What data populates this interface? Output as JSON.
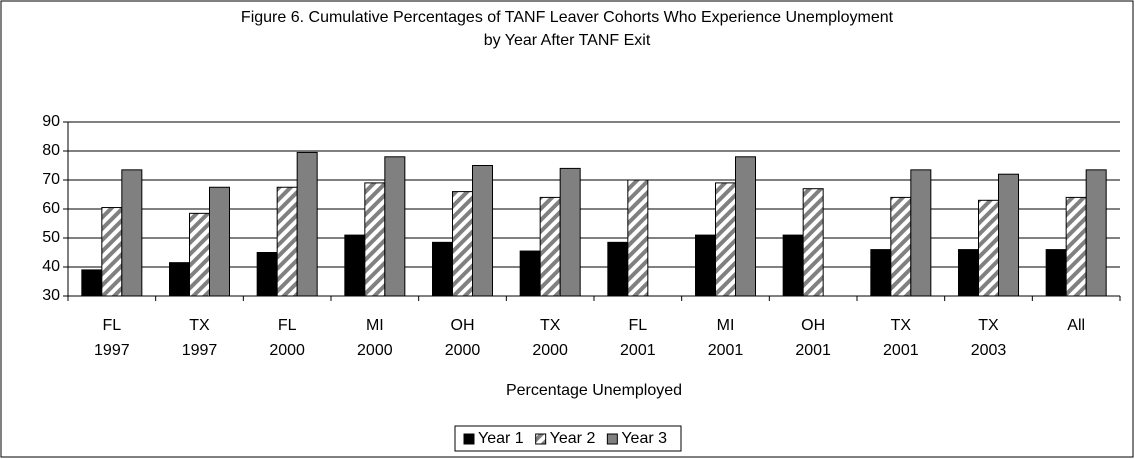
{
  "chart_data": {
    "type": "bar",
    "title": [
      "Figure 6.  Cumulative Percentages of TANF Leaver Cohorts Who Experience Unemployment",
      "by Year After TANF Exit"
    ],
    "x_label": "Percentage Unemployed",
    "categories": [
      [
        "FL",
        "1997"
      ],
      [
        "TX",
        "1997"
      ],
      [
        "FL",
        "2000"
      ],
      [
        "MI",
        "2000"
      ],
      [
        "OH",
        "2000"
      ],
      [
        "TX",
        "2000"
      ],
      [
        "FL",
        "2001"
      ],
      [
        "MI",
        "2001"
      ],
      [
        "OH",
        "2001"
      ],
      [
        "TX",
        "2001"
      ],
      [
        "TX",
        "2003"
      ],
      [
        "All"
      ]
    ],
    "series": [
      {
        "name": "Year 1",
        "color": "#000000",
        "pattern": "solid",
        "values": [
          39,
          41.5,
          45,
          51,
          48.5,
          45.5,
          48.5,
          51,
          51,
          46,
          46,
          46
        ]
      },
      {
        "name": "Year 2",
        "color": "#808080",
        "pattern": "diagonal",
        "values": [
          60.5,
          58.5,
          67.5,
          69,
          66,
          64,
          70,
          69,
          67,
          64,
          63,
          64
        ]
      },
      {
        "name": "Year 3",
        "color": "#808080",
        "pattern": "solid",
        "values": [
          73.5,
          67.5,
          79.5,
          78,
          75,
          74,
          null,
          78,
          null,
          73.5,
          72,
          73.5
        ]
      }
    ],
    "ylim": [
      30,
      90
    ],
    "yticks": [
      30,
      40,
      50,
      60,
      70,
      80,
      90
    ],
    "grid": true,
    "legend": "bottom"
  }
}
